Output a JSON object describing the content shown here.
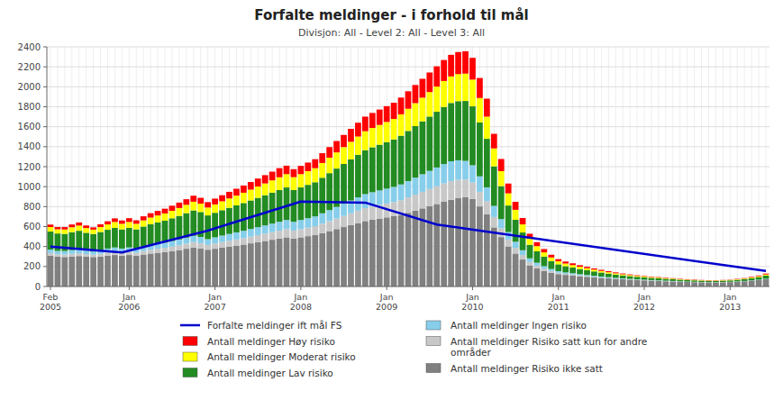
{
  "chart_data": {
    "type": "bar",
    "title": "Forfalte meldinger - i forhold til mål",
    "subtitle": "Divisjon: All - Level 2: All - Level 3: All",
    "stacked": true,
    "grid": true,
    "legend": "bottom",
    "ylim": [
      0,
      2400
    ],
    "yticks": [
      0,
      200,
      400,
      600,
      800,
      1000,
      1200,
      1400,
      1600,
      1800,
      2000,
      2200,
      2400
    ],
    "categories": [
      "Feb\n2005",
      null,
      null,
      null,
      null,
      null,
      null,
      null,
      null,
      null,
      null,
      "Jan\n2006",
      null,
      null,
      null,
      null,
      null,
      null,
      null,
      null,
      null,
      null,
      null,
      "Jan\n2007",
      null,
      null,
      null,
      null,
      null,
      null,
      null,
      null,
      null,
      null,
      null,
      "Jan\n2008",
      null,
      null,
      null,
      null,
      null,
      null,
      null,
      null,
      null,
      null,
      null,
      "Jan\n2009",
      null,
      null,
      null,
      null,
      null,
      null,
      null,
      null,
      null,
      null,
      null,
      "Jan\n2010",
      null,
      null,
      null,
      null,
      null,
      null,
      null,
      null,
      null,
      null,
      null,
      "Jan\n2011",
      null,
      null,
      null,
      null,
      null,
      null,
      null,
      null,
      null,
      null,
      null,
      "Jan\n2012",
      null,
      null,
      null,
      null,
      null,
      null,
      null,
      null,
      null,
      null,
      null,
      "Jan\n2013",
      null,
      null,
      null,
      null,
      null
    ],
    "series": [
      {
        "name": "Antall meldinger Risiko ikke satt",
        "color": "#808080",
        "values": [
          310,
          300,
          295,
          300,
          305,
          300,
          295,
          300,
          310,
          315,
          308,
          315,
          308,
          320,
          330,
          338,
          345,
          355,
          365,
          378,
          390,
          382,
          368,
          378,
          390,
          400,
          410,
          420,
          432,
          444,
          456,
          468,
          480,
          492,
          480,
          492,
          504,
          516,
          535,
          555,
          575,
          595,
          615,
          635,
          655,
          668,
          680,
          692,
          704,
          716,
          738,
          760,
          782,
          804,
          826,
          848,
          868,
          884,
          896,
          878,
          802,
          725,
          592,
          495,
          400,
          330,
          270,
          212,
          180,
          157,
          138,
          124,
          116,
          110,
          103,
          97,
          91,
          86,
          81,
          76,
          72,
          68,
          64,
          61,
          58,
          55,
          52,
          50,
          47,
          45,
          43,
          42,
          41,
          40,
          42,
          44,
          48,
          52,
          58,
          64,
          72
        ]
      },
      {
        "name": "Antall meldinger Risiko satt kun for andre\nområder",
        "color": "#C8C8C8",
        "values": [
          25,
          23,
          25,
          27,
          29,
          25,
          23,
          27,
          30,
          33,
          31,
          33,
          31,
          35,
          38,
          40,
          42,
          45,
          48,
          51,
          54,
          52,
          48,
          52,
          55,
          58,
          61,
          64,
          67,
          70,
          73,
          76,
          79,
          82,
          79,
          82,
          85,
          88,
          94,
          100,
          106,
          112,
          118,
          124,
          130,
          133,
          136,
          139,
          142,
          148,
          154,
          160,
          166,
          172,
          178,
          184,
          188,
          185,
          176,
          163,
          146,
          130,
          104,
          87,
          70,
          57,
          45,
          34,
          28,
          22,
          17,
          13,
          10,
          9,
          8,
          7,
          6,
          5,
          4,
          3,
          3,
          2,
          2,
          2,
          2,
          2,
          2,
          2,
          2,
          1,
          1,
          1,
          1,
          1,
          1,
          1,
          1,
          1,
          1,
          1,
          1
        ]
      },
      {
        "name": "Antall meldinger Ingen risiko",
        "color": "#87CEEB",
        "values": [
          35,
          33,
          35,
          37,
          39,
          35,
          33,
          37,
          40,
          43,
          41,
          43,
          41,
          45,
          48,
          50,
          52,
          55,
          58,
          61,
          64,
          62,
          58,
          62,
          65,
          68,
          71,
          74,
          77,
          80,
          83,
          86,
          89,
          92,
          89,
          92,
          95,
          98,
          104,
          110,
          116,
          122,
          128,
          134,
          140,
          143,
          146,
          149,
          152,
          158,
          164,
          170,
          176,
          182,
          188,
          194,
          198,
          195,
          186,
          173,
          155,
          138,
          111,
          93,
          75,
          61,
          48,
          36,
          30,
          25,
          20,
          17,
          15,
          14,
          12,
          11,
          10,
          9,
          8,
          7,
          6,
          6,
          5,
          5,
          4,
          4,
          4,
          3,
          3,
          3,
          3,
          2,
          2,
          2,
          2,
          2,
          2,
          2,
          2,
          3,
          4
        ]
      },
      {
        "name": "Antall meldinger Lav risiko",
        "color": "#228B22",
        "values": [
          180,
          175,
          172,
          180,
          185,
          178,
          175,
          182,
          188,
          196,
          192,
          196,
          192,
          200,
          208,
          214,
          220,
          228,
          236,
          245,
          254,
          250,
          238,
          246,
          254,
          262,
          270,
          278,
          286,
          294,
          302,
          310,
          318,
          326,
          318,
          326,
          334,
          342,
          356,
          370,
          384,
          398,
          412,
          426,
          440,
          450,
          458,
          466,
          474,
          488,
          502,
          516,
          530,
          544,
          558,
          572,
          584,
          592,
          600,
          590,
          540,
          486,
          396,
          330,
          266,
          220,
          178,
          136,
          114,
          95,
          80,
          68,
          62,
          57,
          52,
          48,
          44,
          40,
          36,
          33,
          30,
          28,
          26,
          24,
          22,
          21,
          19,
          18,
          16,
          15,
          14,
          13,
          12,
          12,
          13,
          14,
          16,
          18,
          22,
          26,
          32
        ]
      },
      {
        "name": "Antall meldinger Moderat risiko",
        "color": "#FFFF00",
        "values": [
          45,
          42,
          44,
          49,
          52,
          47,
          44,
          49,
          54,
          59,
          56,
          59,
          56,
          62,
          66,
          69,
          72,
          75,
          79,
          83,
          87,
          84,
          79,
          84,
          89,
          94,
          98,
          103,
          108,
          113,
          118,
          123,
          128,
          133,
          129,
          133,
          137,
          141,
          148,
          155,
          162,
          169,
          176,
          183,
          190,
          194,
          198,
          202,
          206,
          214,
          222,
          230,
          237,
          245,
          252,
          260,
          266,
          271,
          274,
          268,
          245,
          222,
          180,
          150,
          122,
          100,
          81,
          62,
          52,
          43,
          36,
          30,
          27,
          24,
          22,
          20,
          18,
          16,
          14,
          13,
          11,
          10,
          9,
          8,
          7,
          7,
          6,
          6,
          5,
          5,
          4,
          4,
          4,
          4,
          4,
          4,
          5,
          6,
          7,
          9,
          11
        ]
      },
      {
        "name": "Antall meldinger Høy risiko",
        "color": "#FF0000",
        "values": [
          25,
          22,
          24,
          28,
          31,
          26,
          22,
          28,
          31,
          36,
          33,
          38,
          35,
          41,
          44,
          46,
          48,
          51,
          54,
          56,
          60,
          58,
          54,
          58,
          61,
          66,
          69,
          72,
          76,
          80,
          83,
          87,
          91,
          85,
          80,
          83,
          86,
          90,
          98,
          106,
          114,
          122,
          130,
          138,
          146,
          150,
          154,
          158,
          162,
          168,
          175,
          182,
          189,
          196,
          203,
          210,
          216,
          221,
          224,
          218,
          200,
          180,
          146,
          122,
          98,
          80,
          64,
          48,
          40,
          33,
          27,
          22,
          20,
          18,
          16,
          14,
          12,
          11,
          10,
          9,
          8,
          7,
          6,
          5,
          5,
          5,
          5,
          4,
          4,
          4,
          4,
          3,
          3,
          3,
          3,
          3,
          4,
          5,
          6,
          7,
          9
        ]
      },
      {
        "name": "Forfalte meldinger ift mål FS",
        "type": "line",
        "color": "#0000CD",
        "x": [
          0,
          10,
          22,
          35,
          44,
          54,
          100
        ],
        "values": [
          400,
          340,
          560,
          850,
          840,
          620,
          155
        ]
      }
    ]
  }
}
